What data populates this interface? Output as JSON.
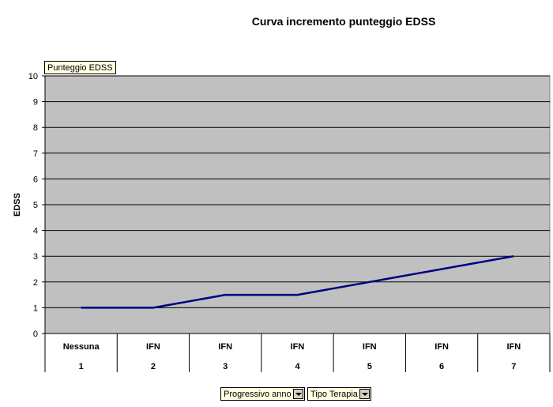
{
  "chart_data": {
    "type": "line",
    "title": "Curva incremento punteggio EDSS",
    "ylabel": "EDSS",
    "ylim": [
      0,
      10
    ],
    "yticks": [
      0,
      1,
      2,
      3,
      4,
      5,
      6,
      7,
      8,
      9,
      10
    ],
    "grid": true,
    "categories": [
      {
        "top": "Nessuna",
        "bottom": "1"
      },
      {
        "top": "IFN",
        "bottom": "2"
      },
      {
        "top": "IFN",
        "bottom": "3"
      },
      {
        "top": "IFN",
        "bottom": "4"
      },
      {
        "top": "IFN",
        "bottom": "5"
      },
      {
        "top": "IFN",
        "bottom": "6"
      },
      {
        "top": "IFN",
        "bottom": "7"
      }
    ],
    "series": [
      {
        "name": "Punteggio EDSS",
        "values": [
          1,
          1,
          1.5,
          1.5,
          2,
          2.5,
          3
        ]
      }
    ],
    "colors": {
      "plot_bg": "#c0c0c0",
      "line": "#000080",
      "gridline": "#000000"
    }
  },
  "pivot_fields": {
    "data_field": "Punteggio EDSS",
    "row_fields": [
      "Progressivo anno",
      "Tipo Terapia"
    ]
  }
}
